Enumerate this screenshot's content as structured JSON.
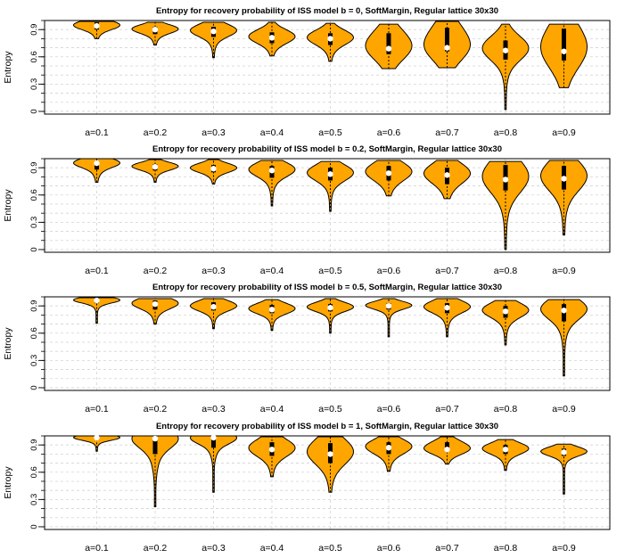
{
  "style": {
    "violin_fill": "#ffa500",
    "violin_stroke": "#000000",
    "box_color": "#000000",
    "median_color": "#ffffff",
    "grid_color": "#d3d3d3"
  },
  "chart_data": [
    {
      "type": "violin",
      "title": "Entropy for recovery probability of ISS model b = 0, SoftMargin, Regular lattice 30x30",
      "ylabel": "Entropy",
      "xlabel": "",
      "categories": [
        "a=0.1",
        "a=0.2",
        "a=0.3",
        "a=0.4",
        "a=0.5",
        "a=0.6",
        "a=0.7",
        "a=0.8",
        "a=0.9"
      ],
      "y_ticks": [
        "0",
        "0.3",
        "0.6",
        "0.9"
      ],
      "ylim": [
        -0.03,
        1.0
      ],
      "grid": true,
      "violins": [
        {
          "min": 0.8,
          "q1": 0.9,
          "median": 0.94,
          "q3": 0.98,
          "max": 0.99
        },
        {
          "min": 0.73,
          "q1": 0.85,
          "median": 0.9,
          "q3": 0.93,
          "max": 0.98
        },
        {
          "min": 0.59,
          "q1": 0.82,
          "median": 0.88,
          "q3": 0.93,
          "max": 0.98
        },
        {
          "min": 0.61,
          "q1": 0.75,
          "median": 0.81,
          "q3": 0.87,
          "max": 0.98
        },
        {
          "min": 0.55,
          "q1": 0.73,
          "median": 0.8,
          "q3": 0.86,
          "max": 0.97
        },
        {
          "min": 0.47,
          "q1": 0.63,
          "median": 0.69,
          "q3": 0.86,
          "max": 0.96
        },
        {
          "min": 0.48,
          "q1": 0.66,
          "median": 0.7,
          "q3": 0.92,
          "max": 0.99
        },
        {
          "min": 0.02,
          "q1": 0.57,
          "median": 0.67,
          "q3": 0.78,
          "max": 0.96
        },
        {
          "min": 0.26,
          "q1": 0.56,
          "median": 0.66,
          "q3": 0.91,
          "max": 0.96
        }
      ]
    },
    {
      "type": "violin",
      "title": "Entropy for recovery probability of ISS model b = 0.2, SoftMargin, Regular lattice 30x30",
      "ylabel": "Entropy",
      "xlabel": "",
      "categories": [
        "a=0.1",
        "a=0.2",
        "a=0.3",
        "a=0.4",
        "a=0.5",
        "a=0.6",
        "a=0.7",
        "a=0.8",
        "a=0.9"
      ],
      "y_ticks": [
        "0",
        "0.3",
        "0.6",
        "0.9"
      ],
      "ylim": [
        -0.03,
        1.0
      ],
      "grid": true,
      "violins": [
        {
          "min": 0.74,
          "q1": 0.88,
          "median": 0.95,
          "q3": 0.97,
          "max": 1.0
        },
        {
          "min": 0.74,
          "q1": 0.87,
          "median": 0.91,
          "q3": 0.94,
          "max": 0.99
        },
        {
          "min": 0.72,
          "q1": 0.85,
          "median": 0.89,
          "q3": 0.93,
          "max": 0.99
        },
        {
          "min": 0.48,
          "q1": 0.79,
          "median": 0.87,
          "q3": 0.92,
          "max": 0.98
        },
        {
          "min": 0.42,
          "q1": 0.76,
          "median": 0.83,
          "q3": 0.9,
          "max": 0.97
        },
        {
          "min": 0.59,
          "q1": 0.76,
          "median": 0.84,
          "q3": 0.92,
          "max": 0.98
        },
        {
          "min": 0.56,
          "q1": 0.72,
          "median": 0.82,
          "q3": 0.9,
          "max": 0.98
        },
        {
          "min": 0.0,
          "q1": 0.65,
          "median": 0.77,
          "q3": 0.93,
          "max": 0.97
        },
        {
          "min": 0.16,
          "q1": 0.66,
          "median": 0.78,
          "q3": 0.92,
          "max": 0.98
        }
      ]
    },
    {
      "type": "violin",
      "title": "Entropy for recovery probability of ISS model b = 0.5, SoftMargin, Regular lattice 30x30",
      "ylabel": "Entropy",
      "xlabel": "",
      "categories": [
        "a=0.1",
        "a=0.2",
        "a=0.3",
        "a=0.4",
        "a=0.5",
        "a=0.6",
        "a=0.7",
        "a=0.8",
        "a=0.9"
      ],
      "y_ticks": [
        "0",
        "0.3",
        "0.6",
        "0.9"
      ],
      "ylim": [
        -0.03,
        1.0
      ],
      "grid": true,
      "violins": [
        {
          "min": 0.71,
          "q1": 0.93,
          "median": 0.96,
          "q3": 0.98,
          "max": 0.99
        },
        {
          "min": 0.7,
          "q1": 0.86,
          "median": 0.92,
          "q3": 0.96,
          "max": 0.98
        },
        {
          "min": 0.65,
          "q1": 0.85,
          "median": 0.89,
          "q3": 0.94,
          "max": 0.98
        },
        {
          "min": 0.63,
          "q1": 0.82,
          "median": 0.86,
          "q3": 0.91,
          "max": 0.97
        },
        {
          "min": 0.6,
          "q1": 0.84,
          "median": 0.88,
          "q3": 0.92,
          "max": 0.98
        },
        {
          "min": 0.56,
          "q1": 0.86,
          "median": 0.9,
          "q3": 0.93,
          "max": 0.98
        },
        {
          "min": 0.56,
          "q1": 0.82,
          "median": 0.88,
          "q3": 0.93,
          "max": 0.98
        },
        {
          "min": 0.47,
          "q1": 0.77,
          "median": 0.84,
          "q3": 0.9,
          "max": 0.96
        },
        {
          "min": 0.13,
          "q1": 0.73,
          "median": 0.85,
          "q3": 0.92,
          "max": 0.97
        }
      ]
    },
    {
      "type": "violin",
      "title": "Entropy for recovery probability of ISS model b = 1, SoftMargin, Regular lattice 30x30",
      "ylabel": "Entropy",
      "xlabel": "",
      "categories": [
        "a=0.1",
        "a=0.2",
        "a=0.3",
        "a=0.4",
        "a=0.5",
        "a=0.6",
        "a=0.7",
        "a=0.8",
        "a=0.9"
      ],
      "y_ticks": [
        "0",
        "0.3",
        "0.6",
        "0.9"
      ],
      "ylim": [
        -0.03,
        1.0
      ],
      "grid": true,
      "violins": [
        {
          "min": 0.83,
          "q1": 0.97,
          "median": 0.98,
          "q3": 0.99,
          "max": 1.0
        },
        {
          "min": 0.22,
          "q1": 0.8,
          "median": 0.97,
          "q3": 0.99,
          "max": 1.0
        },
        {
          "min": 0.38,
          "q1": 0.87,
          "median": 0.98,
          "q3": 0.99,
          "max": 1.0
        },
        {
          "min": 0.55,
          "q1": 0.78,
          "median": 0.85,
          "q3": 0.93,
          "max": 0.99
        },
        {
          "min": 0.38,
          "q1": 0.7,
          "median": 0.8,
          "q3": 0.92,
          "max": 0.99
        },
        {
          "min": 0.61,
          "q1": 0.8,
          "median": 0.87,
          "q3": 0.93,
          "max": 0.99
        },
        {
          "min": 0.69,
          "q1": 0.83,
          "median": 0.85,
          "q3": 0.93,
          "max": 0.99
        },
        {
          "min": 0.62,
          "q1": 0.8,
          "median": 0.85,
          "q3": 0.9,
          "max": 0.96
        },
        {
          "min": 0.36,
          "q1": 0.78,
          "median": 0.82,
          "q3": 0.86,
          "max": 0.91
        }
      ]
    }
  ]
}
